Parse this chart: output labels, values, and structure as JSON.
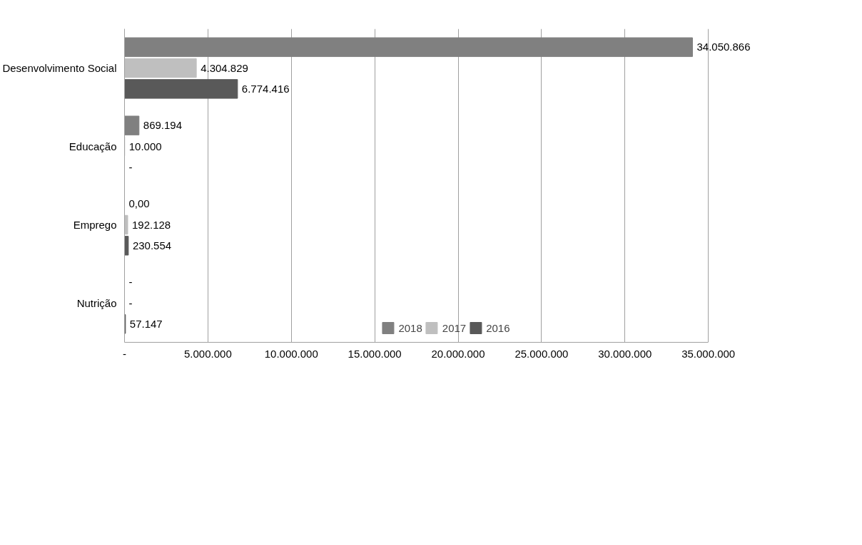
{
  "chart_data": {
    "type": "bar",
    "orientation": "horizontal",
    "categories": [
      "Desenvolvimento Social",
      "Educação",
      "Emprego",
      "Nutrição"
    ],
    "series": [
      {
        "name": "2018",
        "color": "#808080",
        "values": [
          34050866,
          869194,
          0,
          0
        ],
        "value_labels": [
          "34.050.866",
          "869.194",
          "0,00",
          "-"
        ]
      },
      {
        "name": "2017",
        "color": "#bfbfbf",
        "values": [
          4304829,
          10000,
          192128,
          0
        ],
        "value_labels": [
          "4.304.829",
          "10.000",
          "192.128",
          "-"
        ]
      },
      {
        "name": "2016",
        "color": "#595959",
        "values": [
          6774416,
          0,
          230554,
          57147
        ],
        "value_labels": [
          "6.774.416",
          "-",
          "230.554",
          "57.147"
        ]
      }
    ],
    "xlim": [
      0,
      35000000
    ],
    "xticks": [
      {
        "value": 0,
        "label": "-"
      },
      {
        "value": 5000000,
        "label": "5.000.000"
      },
      {
        "value": 10000000,
        "label": "10.000.000"
      },
      {
        "value": 15000000,
        "label": "15.000.000"
      },
      {
        "value": 20000000,
        "label": "20.000.000"
      },
      {
        "value": 25000000,
        "label": "25.000.000"
      },
      {
        "value": 30000000,
        "label": "30.000.000"
      },
      {
        "value": 35000000,
        "label": "35.000.000"
      }
    ],
    "grid": "x",
    "legend": "bottom"
  }
}
